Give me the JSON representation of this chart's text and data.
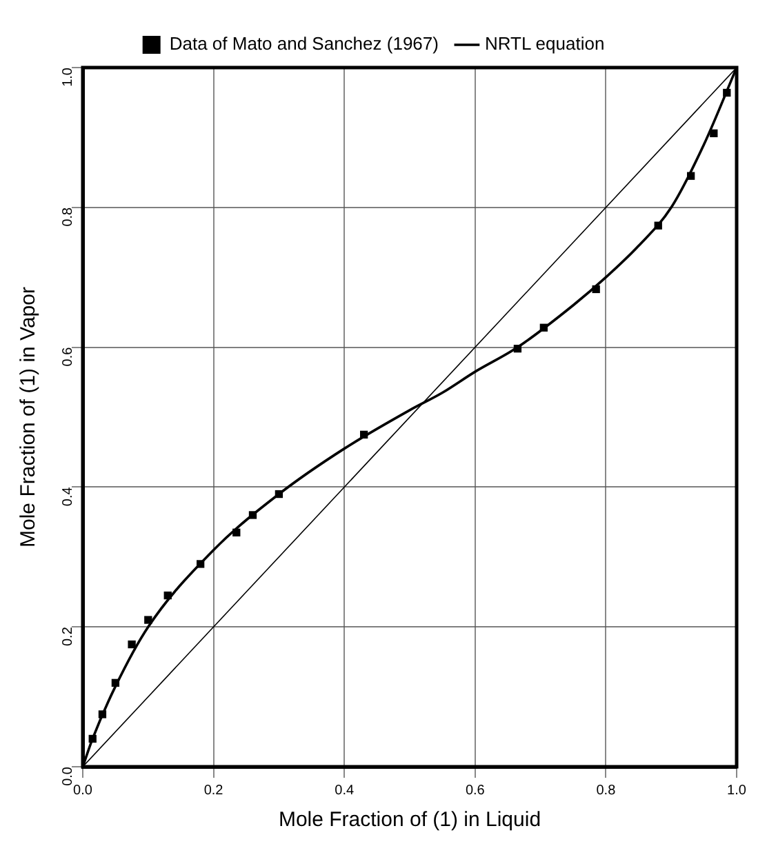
{
  "chart_data": {
    "type": "scatter",
    "xlabel": "Mole Fraction of (1) in Liquid",
    "ylabel": "Mole Fraction of (1) in Vapor",
    "series": [
      {
        "name": "Data of Mato and Sanchez (1967)",
        "type": "scatter",
        "color": "#000000",
        "marker": "square",
        "x": [
          0.015,
          0.03,
          0.05,
          0.075,
          0.1,
          0.13,
          0.18,
          0.235,
          0.26,
          0.3,
          0.43,
          0.665,
          0.705,
          0.785,
          0.88,
          0.93,
          0.965,
          0.985
        ],
        "values": [
          0.04,
          0.075,
          0.12,
          0.175,
          0.21,
          0.245,
          0.29,
          0.335,
          0.36,
          0.39,
          0.475,
          0.598,
          0.628,
          0.683,
          0.774,
          0.845,
          0.906,
          0.964
        ]
      },
      {
        "name": "NRTL equation",
        "type": "line",
        "color": "#000000",
        "marker": "none",
        "x": [
          0,
          0.015,
          0.05,
          0.1,
          0.2,
          0.3,
          0.4,
          0.5,
          0.55,
          0.6,
          0.665,
          0.75,
          0.8,
          0.85,
          0.9,
          0.95,
          1
        ],
        "values": [
          0,
          0.04,
          0.115,
          0.2,
          0.31,
          0.39,
          0.455,
          0.51,
          0.535,
          0.565,
          0.6,
          0.66,
          0.7,
          0.745,
          0.8,
          0.89,
          1
        ]
      },
      {
        "type": "line",
        "color": "#000000",
        "marker": "none",
        "x": [
          0,
          1
        ],
        "values": [
          0,
          1
        ]
      }
    ],
    "xlim": [
      0,
      1
    ],
    "ylim": [
      0,
      1
    ],
    "xticks": [
      {
        "value": 0,
        "label": "0.0"
      },
      {
        "value": 0.2,
        "label": "0.2"
      },
      {
        "value": 0.4,
        "label": "0.4"
      },
      {
        "value": 0.6,
        "label": "0.6"
      },
      {
        "value": 0.8,
        "label": "0.8"
      },
      {
        "value": 1,
        "label": "1.0"
      }
    ],
    "yticks": [
      {
        "value": 0,
        "label": "0.0"
      },
      {
        "value": 0.2,
        "label": "0.2"
      },
      {
        "value": 0.4,
        "label": "0.4"
      },
      {
        "value": 0.6,
        "label": "0.6"
      },
      {
        "value": 0.8,
        "label": "0.8"
      },
      {
        "value": 1,
        "label": "1.0"
      }
    ],
    "grid": true,
    "legend": "top"
  }
}
